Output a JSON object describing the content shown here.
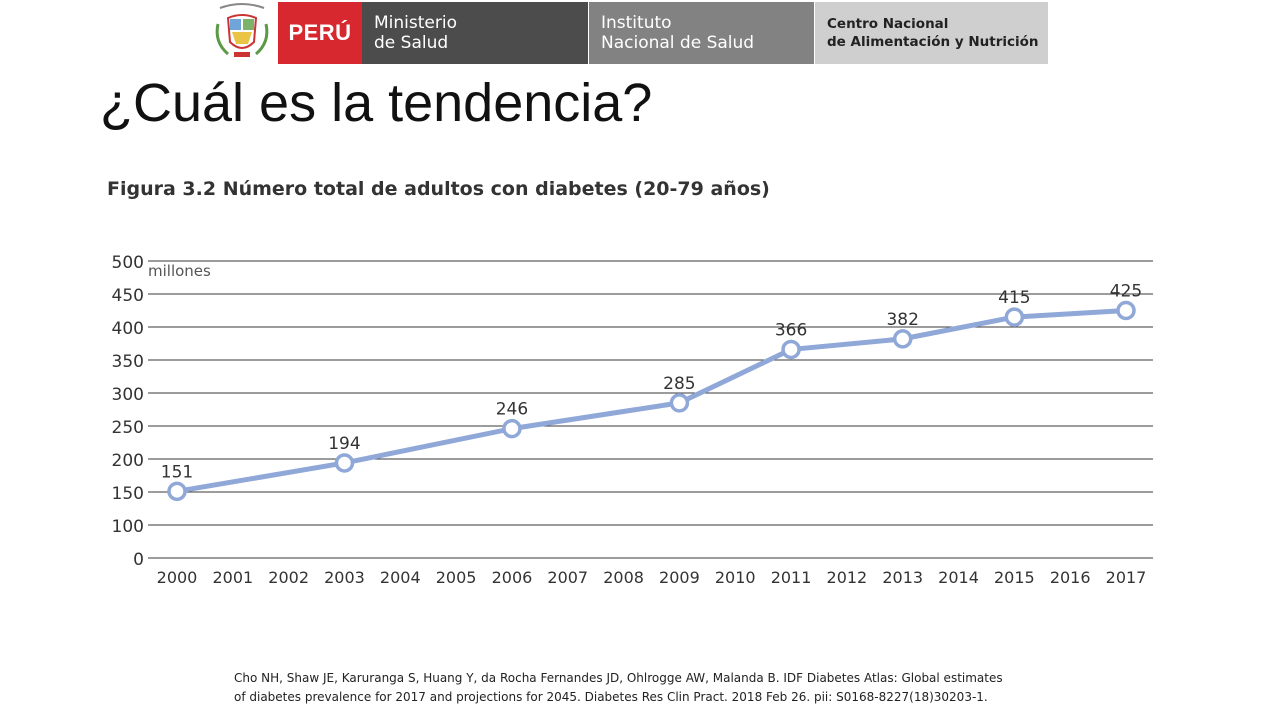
{
  "header": {
    "peru_label": "PERÚ",
    "ministry_line1": "Ministerio",
    "ministry_line2": "de Salud",
    "institute_line1": "Instituto",
    "institute_line2": "Nacional de Salud",
    "center_line1": "Centro Nacional",
    "center_line2": "de Alimentación y Nutrición",
    "colors": {
      "peru_red": "#d7282f",
      "ministry_bg": "#4d4c4c",
      "institute_bg": "#828282",
      "center_bg": "#cfcfcf"
    },
    "seal_icon": "coat-of-arms-icon"
  },
  "slide": {
    "title": "¿Cuál es la tendencia?"
  },
  "chart_data": {
    "type": "line",
    "title": "Figura 3.2 Número total de adultos con diabetes (20-79 años)",
    "ylabel": "millones",
    "xlabel": "",
    "categories": [
      "2000",
      "2001",
      "2002",
      "2003",
      "2004",
      "2005",
      "2006",
      "2007",
      "2008",
      "2009",
      "2010",
      "2011",
      "2012",
      "2013",
      "2014",
      "2015",
      "2016",
      "2017"
    ],
    "series": [
      {
        "points": [
          {
            "x": "2000",
            "y": 151
          },
          {
            "x": "2003",
            "y": 194
          },
          {
            "x": "2006",
            "y": 246
          },
          {
            "x": "2009",
            "y": 285
          },
          {
            "x": "2011",
            "y": 366
          },
          {
            "x": "2013",
            "y": 382
          },
          {
            "x": "2015",
            "y": 415
          },
          {
            "x": "2017",
            "y": 425
          }
        ],
        "color": "#8fa8d8"
      }
    ],
    "y_ticks": [
      "0",
      "100",
      "150",
      "200",
      "250",
      "300",
      "350",
      "400",
      "450",
      "500"
    ],
    "ylim": [
      0,
      500
    ],
    "grid": true,
    "legend": "none"
  },
  "citation": {
    "line1": "Cho NH, Shaw JE, Karuranga S, Huang Y, da Rocha Fernandes JD, Ohlrogge AW, Malanda B. IDF Diabetes Atlas: Global estimates",
    "line2": "of diabetes prevalence for 2017 and projections for 2045. Diabetes Res Clin Pract. 2018 Feb 26. pii: S0168-8227(18)30203-1."
  }
}
